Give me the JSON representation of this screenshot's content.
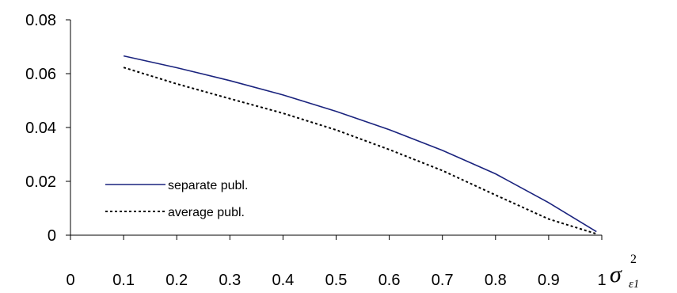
{
  "chart_data": {
    "type": "line",
    "title": "",
    "xlabel": {
      "symbol": "σ",
      "subscript": "ε1",
      "superscript": "2"
    },
    "ylabel": "",
    "xlim": [
      0,
      1
    ],
    "ylim": [
      0,
      0.08
    ],
    "x_ticks": [
      "0",
      "0.1",
      "0.2",
      "0.3",
      "0.4",
      "0.5",
      "0.6",
      "0.7",
      "0.8",
      "0.9",
      "1"
    ],
    "x_tick_values": [
      0,
      0.1,
      0.2,
      0.3,
      0.4,
      0.5,
      0.6,
      0.7,
      0.8,
      0.9,
      1
    ],
    "y_ticks": [
      "0",
      "0.02",
      "0.04",
      "0.06",
      "0.08"
    ],
    "y_tick_values": [
      0,
      0.02,
      0.04,
      0.06,
      0.08
    ],
    "grid": false,
    "legend_position": "lower-left",
    "x": [
      0.1,
      0.2,
      0.3,
      0.4,
      0.5,
      0.6,
      0.7,
      0.8,
      0.9,
      0.99
    ],
    "series": [
      {
        "name": "separate publ.",
        "color": "#1a237e",
        "style": "solid",
        "values": [
          0.0666,
          0.0622,
          0.0574,
          0.0521,
          0.046,
          0.0392,
          0.0315,
          0.0228,
          0.0121,
          0.0013
        ]
      },
      {
        "name": "average publ.",
        "color": "#000000",
        "style": "dotted",
        "values": [
          0.0623,
          0.0562,
          0.0507,
          0.0453,
          0.0391,
          0.0318,
          0.024,
          0.0149,
          0.006,
          0.0005
        ]
      }
    ]
  }
}
